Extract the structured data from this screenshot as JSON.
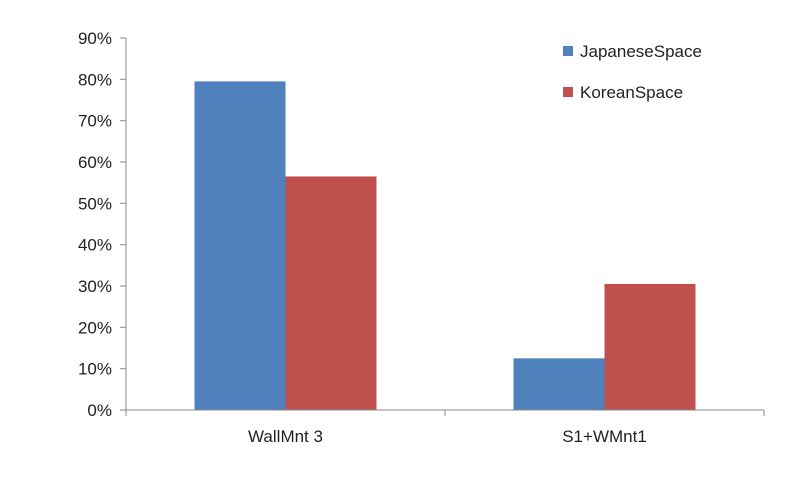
{
  "chart_data": {
    "type": "bar",
    "categories": [
      "WallMnt 3",
      "S1+WMnt1"
    ],
    "series": [
      {
        "name": "JapaneseSpace",
        "values": [
          0.795,
          0.125
        ],
        "color": "#4F81BD"
      },
      {
        "name": "KoreanSpace",
        "values": [
          0.565,
          0.305
        ],
        "color": "#C0504D"
      }
    ],
    "ylim": [
      0,
      0.9
    ],
    "yticks": [
      "0%",
      "10%",
      "20%",
      "30%",
      "40%",
      "50%",
      "60%",
      "70%",
      "80%",
      "90%"
    ],
    "ytick_values": [
      0,
      0.1,
      0.2,
      0.3,
      0.4,
      0.5,
      0.6,
      0.7,
      0.8,
      0.9
    ],
    "title": "",
    "xlabel": "",
    "ylabel": "",
    "grid": false,
    "legend_position": "top-right"
  }
}
